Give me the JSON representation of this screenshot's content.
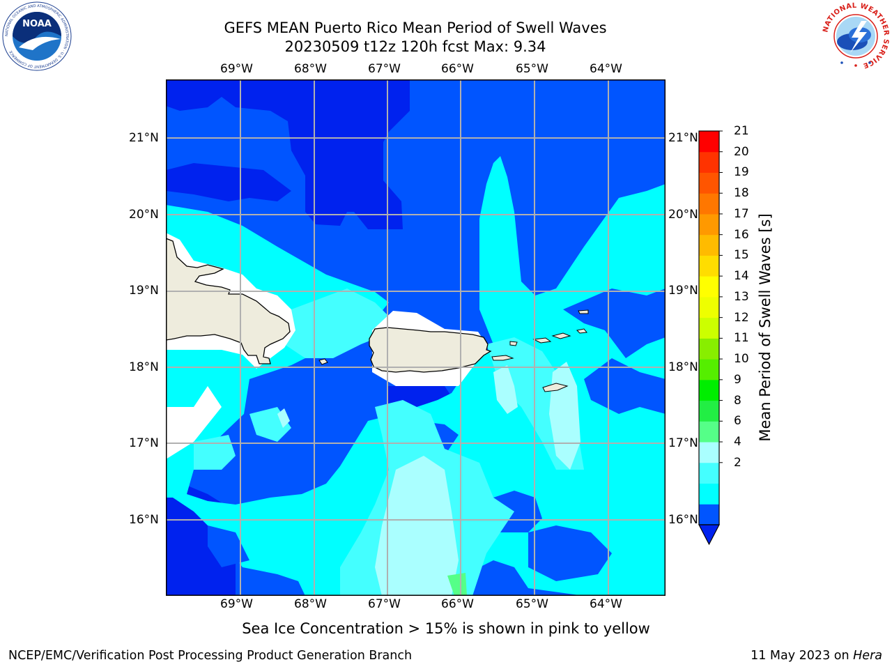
{
  "header": {
    "title_line1": "GEFS MEAN Puerto Rico Mean Period of Swell Waves",
    "title_line2": "20230509 t12z 120h fcst   Max: 9.34"
  },
  "map": {
    "lon_labels": [
      "69°W",
      "68°W",
      "67°W",
      "66°W",
      "65°W",
      "64°W"
    ],
    "lat_labels": [
      "21°N",
      "20°N",
      "19°N",
      "18°N",
      "17°N",
      "16°N"
    ]
  },
  "colorbar": {
    "label": "Mean Period of Swell Waves [s]",
    "ticks": [
      "21",
      "20",
      "19",
      "18",
      "17",
      "16",
      "15",
      "14",
      "13",
      "12",
      "11",
      "10",
      "9",
      "8",
      "6",
      "4",
      "2"
    ],
    "colors": [
      "#0055ff",
      "#00ffff",
      "#44ffff",
      "#aaffff",
      "#55ff88",
      "#22ee44",
      "#00ee00",
      "#55ee00",
      "#88ee00",
      "#ccff00",
      "#eeff00",
      "#ffff00",
      "#ffdd00",
      "#ffbb00",
      "#ff9900",
      "#ff7700",
      "#ff5500",
      "#ff3300",
      "#ff0000"
    ],
    "under_color": "#0022ee"
  },
  "caption": "Sea Ice Concentration > 15% is shown in pink to yellow",
  "footer": {
    "left": "NCEP/EMC/Verification Post Processing Product Generation Branch",
    "right_prefix": "11 May 2023 on ",
    "right_host": "Hera"
  },
  "logos": {
    "noaa_text": "NOAA",
    "noaa_ring": "NATIONAL OCEANIC AND ATMOSPHERIC ADMINISTRATION · U.S. DEPARTMENT OF COMMERCE",
    "nws_ring": "NATIONAL WEATHER SERVICE"
  }
}
